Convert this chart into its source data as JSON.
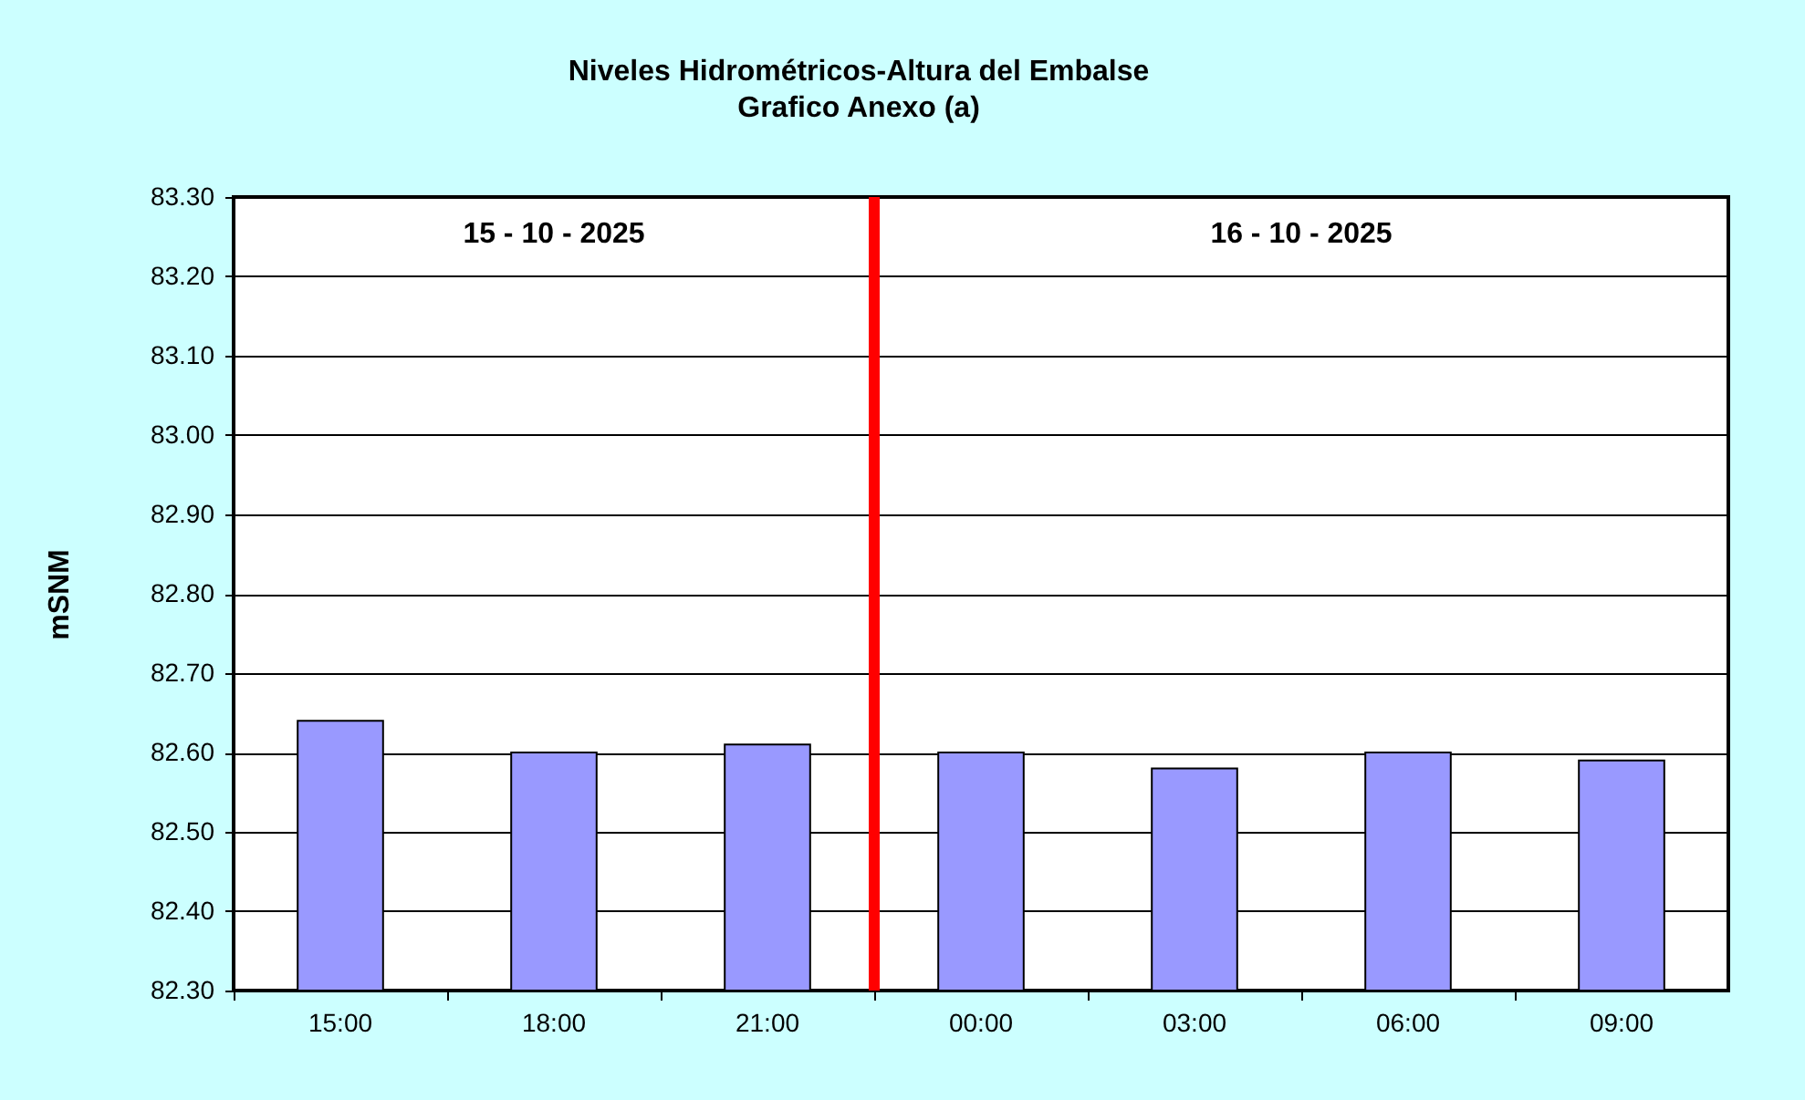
{
  "chart_data": {
    "type": "bar",
    "title": "Niveles Hidrométricos-Altura del Embalse",
    "subtitle": "Grafico Anexo (a)",
    "ylabel": "mSNM",
    "categories": [
      "15:00",
      "18:00",
      "21:00",
      "00:00",
      "03:00",
      "06:00",
      "09:00"
    ],
    "series": [
      {
        "color": "#9999ff",
        "values": [
          82.64,
          82.6,
          82.61,
          82.6,
          82.58,
          82.6,
          82.59
        ]
      }
    ],
    "ylim": [
      82.3,
      83.3
    ],
    "yticks": [
      {
        "value": 82.3,
        "label": "82.30"
      },
      {
        "value": 82.4,
        "label": "82.40"
      },
      {
        "value": 82.5,
        "label": "82.50"
      },
      {
        "value": 82.6,
        "label": "82.60"
      },
      {
        "value": 82.7,
        "label": "82.70"
      },
      {
        "value": 82.8,
        "label": "82.80"
      },
      {
        "value": 82.9,
        "label": "82.90"
      },
      {
        "value": 83.0,
        "label": "83.00"
      },
      {
        "value": 83.1,
        "label": "83.10"
      },
      {
        "value": 83.2,
        "label": "83.20"
      },
      {
        "value": 83.3,
        "label": "83.30"
      }
    ],
    "grid": "y",
    "ref_lines": [
      {
        "axis": "x",
        "value": "00:00",
        "color": "#ff0000"
      }
    ],
    "annotations": [
      "15 - 10 - 2025",
      "16 - 10 - 2025"
    ]
  }
}
